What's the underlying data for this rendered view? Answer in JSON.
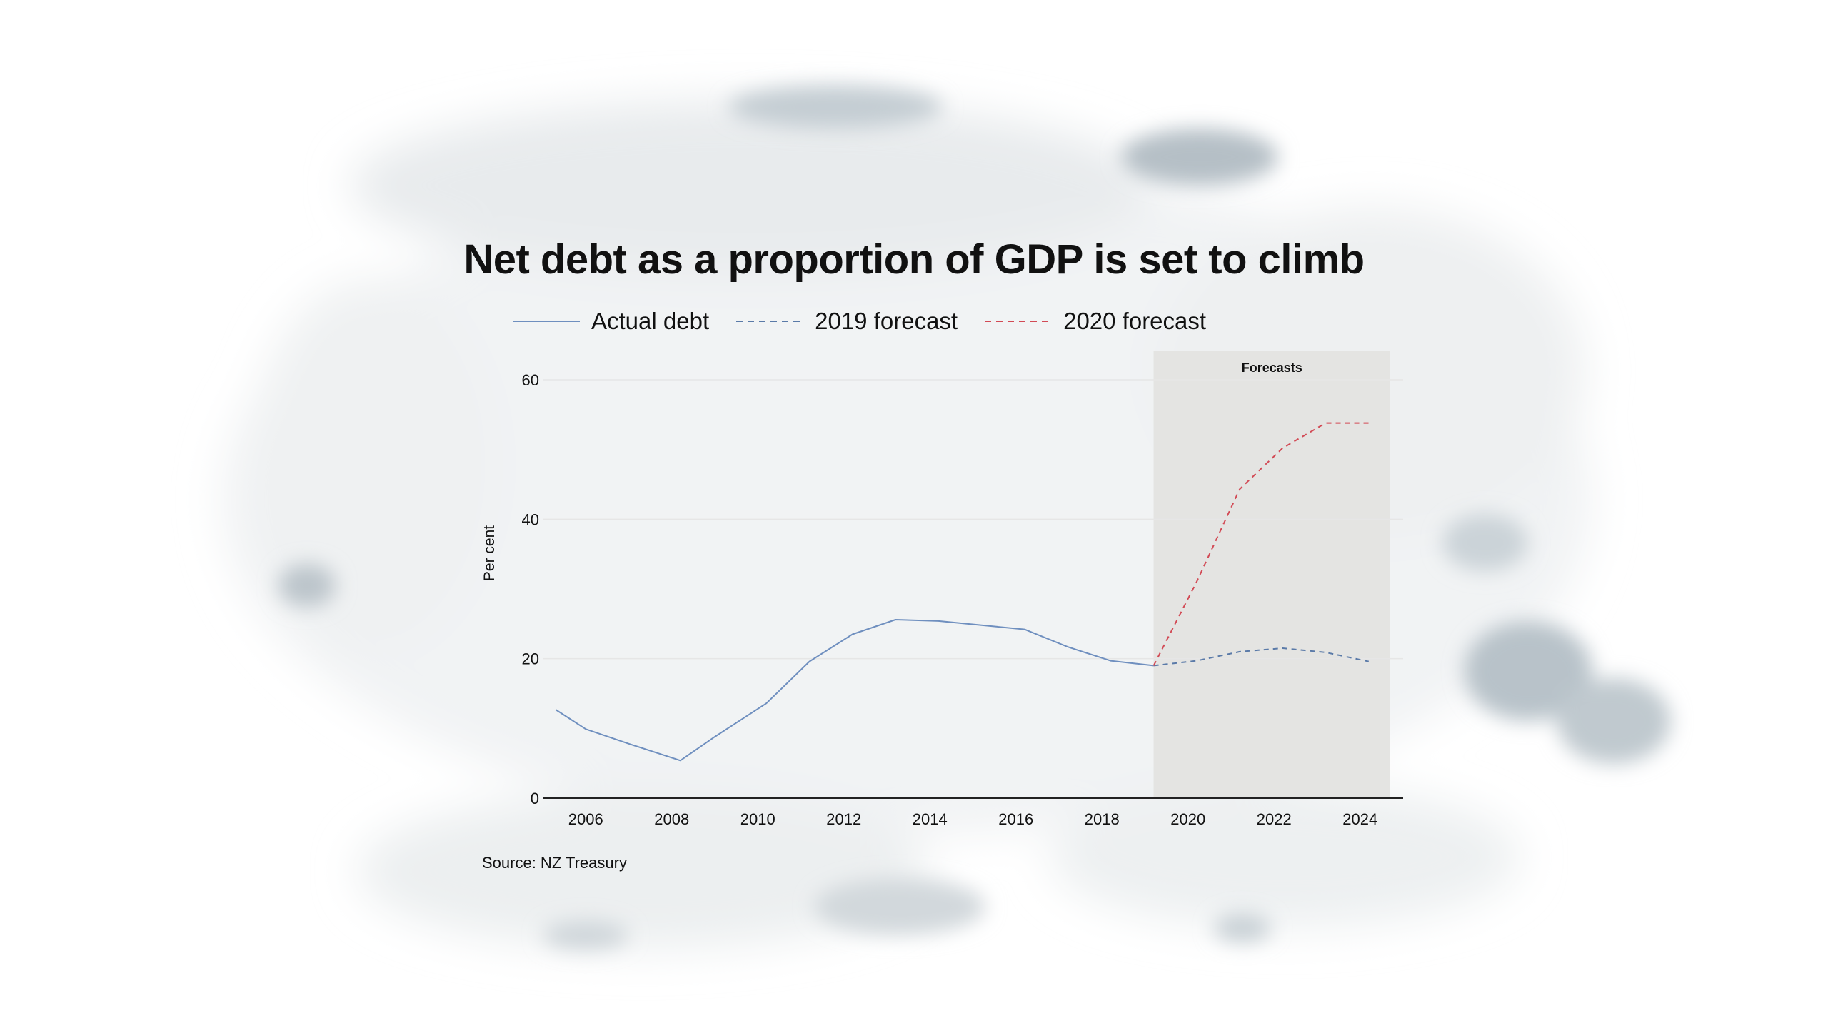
{
  "colors": {
    "actual": "#6f8fbf",
    "forecast_2019": "#5a7aa8",
    "forecast_2020": "#d24a55",
    "forecast_band": "#e4e4e2",
    "grid": "#e6e6e6",
    "axis": "#222222"
  },
  "chart_data": {
    "type": "line",
    "title": "Net debt as a proportion of GDP is set to climb",
    "ylabel": "Per cent",
    "xlabel": "",
    "xlim": [
      2005,
      2025
    ],
    "ylim": [
      0,
      60
    ],
    "x_ticks": [
      2006,
      2008,
      2010,
      2012,
      2014,
      2016,
      2018,
      2020,
      2022,
      2024
    ],
    "y_ticks": [
      0,
      20,
      40,
      60
    ],
    "grid": true,
    "legend_position": "top",
    "forecast_band": {
      "x_start": 2019.2,
      "x_end": 2024.7,
      "label": "Forecasts"
    },
    "series": [
      {
        "name": "Actual debt",
        "style": "solid",
        "x": [
          2005.3,
          2006,
          2007,
          2008.2,
          2009,
          2010.2,
          2011.2,
          2012.2,
          2013.2,
          2014.2,
          2015.2,
          2016.2,
          2017.2,
          2018.2,
          2019.2
        ],
        "y": [
          12.7,
          9.9,
          7.8,
          5.4,
          8.8,
          13.6,
          19.6,
          23.5,
          25.6,
          25.4,
          24.8,
          24.2,
          21.7,
          19.7,
          19.0
        ]
      },
      {
        "name": "2019 forecast",
        "style": "dashed",
        "x": [
          2019.2,
          2020.2,
          2021.2,
          2022.2,
          2023.2,
          2024.2
        ],
        "y": [
          19.0,
          19.7,
          21.0,
          21.5,
          20.9,
          19.6
        ]
      },
      {
        "name": "2020 forecast",
        "style": "dashed",
        "x": [
          2019.2,
          2020.2,
          2021.2,
          2022.2,
          2023.2,
          2024.2
        ],
        "y": [
          19.0,
          31.0,
          44.3,
          50.2,
          53.8,
          53.8
        ]
      }
    ]
  },
  "source": "Source: NZ Treasury"
}
